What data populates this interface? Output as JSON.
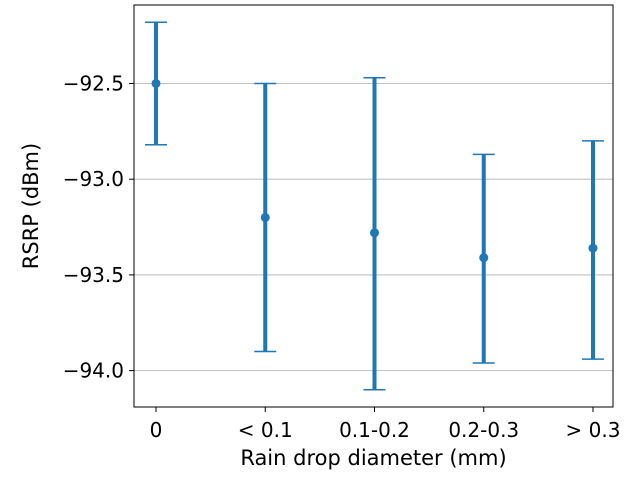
{
  "chart_data": {
    "type": "errorbar",
    "title": "",
    "xlabel": "Rain drop diameter (mm)",
    "ylabel": "RSRP (dBm)",
    "categories": [
      "0",
      "< 0.1",
      "0.1-0.2",
      "0.2-0.3",
      "> 0.3"
    ],
    "series": [
      {
        "mean": [
          -92.5,
          -93.2,
          -93.28,
          -93.41,
          -93.36
        ],
        "lower": [
          -92.82,
          -93.9,
          -94.1,
          -93.96,
          -93.94
        ],
        "upper": [
          -92.18,
          -92.5,
          -92.47,
          -92.87,
          -92.8
        ]
      }
    ],
    "ylim": [
      -94.19,
      -92.09
    ],
    "yticks": [
      -94.0,
      -93.5,
      -93.0,
      -92.5
    ],
    "ytick_labels": [
      "−94.0",
      "−93.5",
      "−93.0",
      "−92.5"
    ],
    "grid": "y-major",
    "color": "#1f77b4"
  }
}
